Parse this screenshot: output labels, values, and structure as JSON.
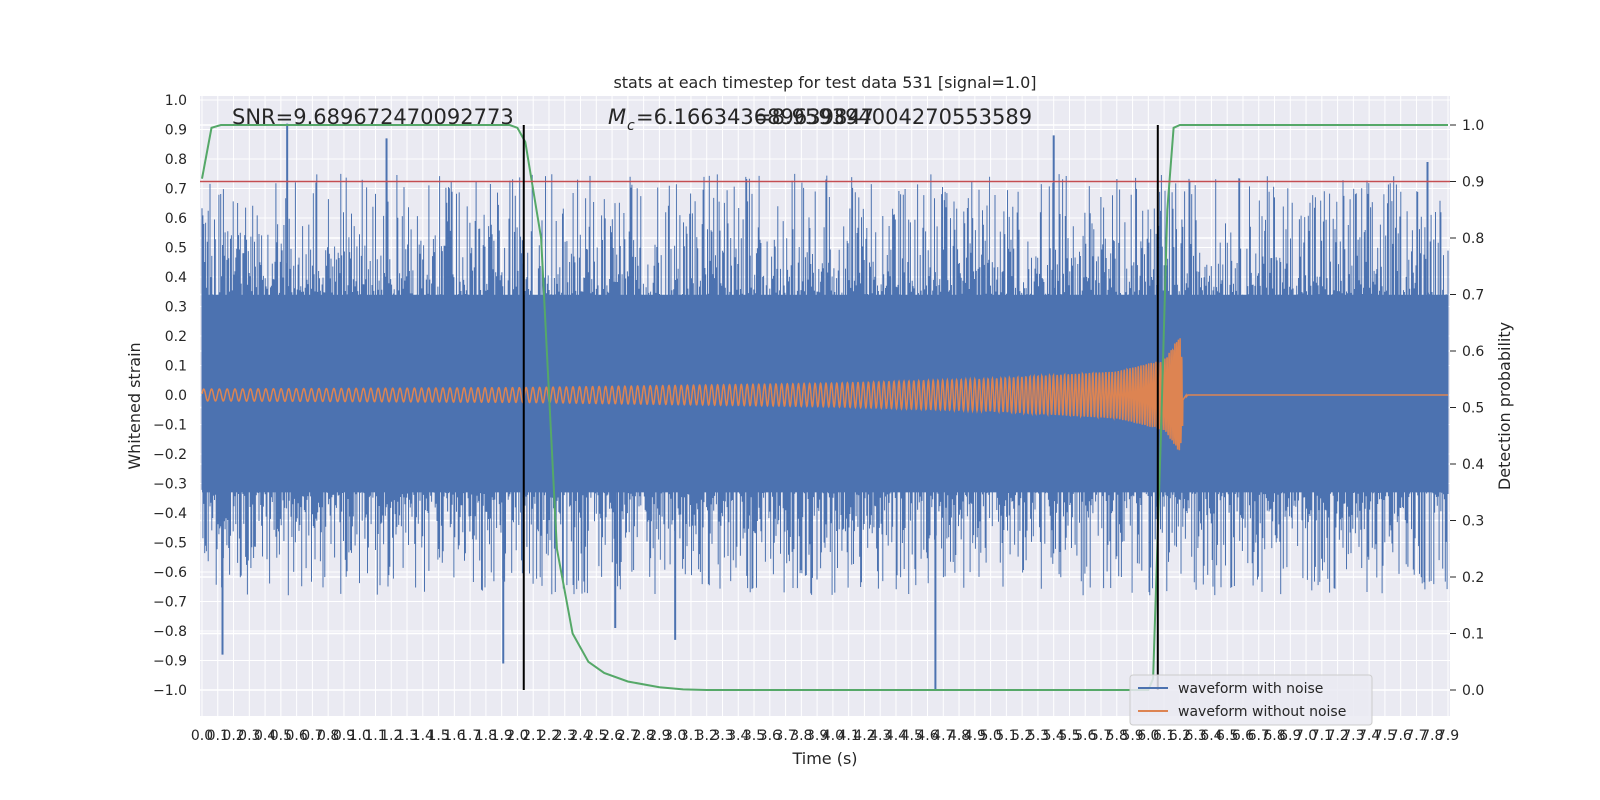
{
  "chart_data": {
    "type": "line",
    "title": "stats at each timestep for test data 531 [signal=1.0]",
    "xlabel": "Time (s)",
    "ylabel": "Whitened strain",
    "y2label": "Detection probability",
    "xlim": [
      0.0,
      7.9
    ],
    "ylim": [
      -1.09,
      1.0
    ],
    "y2lim": [
      -0.045,
      1.045
    ],
    "x_ticks": [
      "0.0",
      "0.1",
      "0.2",
      "0.3",
      "0.4",
      "0.5",
      "0.6",
      "0.7",
      "0.8",
      "0.9",
      "1.0",
      "1.1",
      "1.2",
      "1.3",
      "1.4",
      "1.5",
      "1.6",
      "1.7",
      "1.8",
      "1.9",
      "2.0",
      "2.1",
      "2.2",
      "2.3",
      "2.4",
      "2.5",
      "2.6",
      "2.7",
      "2.8",
      "2.9",
      "3.0",
      "3.1",
      "3.2",
      "3.3",
      "3.4",
      "3.5",
      "3.6",
      "3.7",
      "3.8",
      "3.9",
      "4.0",
      "4.1",
      "4.2",
      "4.3",
      "4.4",
      "4.5",
      "4.6",
      "4.7",
      "4.8",
      "4.9",
      "5.0",
      "5.1",
      "5.2",
      "5.3",
      "5.4",
      "5.5",
      "5.6",
      "5.7",
      "5.8",
      "5.9",
      "6.0",
      "6.1",
      "6.2",
      "6.3",
      "6.4",
      "6.5",
      "6.6",
      "6.7",
      "6.8",
      "6.9",
      "7.0",
      "7.1",
      "7.2",
      "7.3",
      "7.4",
      "7.5",
      "7.6",
      "7.7",
      "7.8",
      "7.9"
    ],
    "y_ticks": [
      "1.0",
      "0.9",
      "0.8",
      "0.7",
      "0.6",
      "0.5",
      "0.4",
      "0.3",
      "0.2",
      "0.1",
      "0.0",
      "−0.1",
      "−0.2",
      "−0.3",
      "−0.4",
      "−0.5",
      "−0.6",
      "−0.7",
      "−0.8",
      "−0.9",
      "−1.0"
    ],
    "y2_ticks": [
      "1.0",
      "0.9",
      "0.8",
      "0.7",
      "0.6",
      "0.5",
      "0.4",
      "0.3",
      "0.2",
      "0.1",
      "0.0"
    ],
    "annotations": {
      "snr": "SNR=9.689672470092773",
      "mc_symbol": "M",
      "mc_subscript": "c",
      "mc_value_a": "=6.166343689639847",
      "mc_value_b": "=8.959394004270553589"
    },
    "series": [
      {
        "name": "waveform with noise",
        "color": "#4c72b0",
        "description": "noisy whitened strain, roughly within ±0.35 with spikes up to 0.92 and down to -1.0",
        "spikes": [
          {
            "x": 0.54,
            "y": 0.92
          },
          {
            "x": 1.17,
            "y": 0.87
          },
          {
            "x": 5.4,
            "y": 0.88
          },
          {
            "x": 0.13,
            "y": -0.88
          },
          {
            "x": 1.91,
            "y": -0.91
          },
          {
            "x": 4.65,
            "y": -1.0
          },
          {
            "x": 7.77,
            "y": 0.79
          },
          {
            "x": 3.0,
            "y": -0.83
          },
          {
            "x": 2.62,
            "y": -0.79
          }
        ]
      },
      {
        "name": "waveform without noise",
        "color": "#dd8452",
        "description": "chirp: amplitude grows from ~0.02 at t=0 to ~0.2 at merger t≈6.2 s, then ~0",
        "envelope": [
          [
            0.0,
            0.02
          ],
          [
            2.0,
            0.025
          ],
          [
            4.0,
            0.04
          ],
          [
            5.0,
            0.055
          ],
          [
            5.8,
            0.08
          ],
          [
            6.1,
            0.12
          ],
          [
            6.2,
            0.2
          ],
          [
            6.25,
            0.0
          ],
          [
            7.9,
            0.0
          ]
        ]
      },
      {
        "name": "detection probability",
        "color": "#55a868",
        "axis": "right",
        "points": [
          [
            0.0,
            0.905
          ],
          [
            0.06,
            0.995
          ],
          [
            0.12,
            1.0
          ],
          [
            1.95,
            1.0
          ],
          [
            2.0,
            0.995
          ],
          [
            2.05,
            0.97
          ],
          [
            2.15,
            0.8
          ],
          [
            2.25,
            0.25
          ],
          [
            2.35,
            0.1
          ],
          [
            2.45,
            0.05
          ],
          [
            2.55,
            0.03
          ],
          [
            2.7,
            0.015
          ],
          [
            2.9,
            0.005
          ],
          [
            3.05,
            0.001
          ],
          [
            3.2,
            0.0
          ],
          [
            6.0,
            0.0
          ],
          [
            6.03,
            0.02
          ],
          [
            6.08,
            0.45
          ],
          [
            6.12,
            0.85
          ],
          [
            6.16,
            0.995
          ],
          [
            6.2,
            1.0
          ],
          [
            7.9,
            1.0
          ]
        ]
      }
    ],
    "threshold": {
      "color": "#c44e52",
      "value": 0.9,
      "axis": "right"
    },
    "vlines": [
      {
        "x": 2.04,
        "color": "#000000"
      },
      {
        "x": 6.06,
        "color": "#000000"
      }
    ],
    "legend": {
      "placement": "lower-right",
      "entries": [
        "waveform with noise",
        "waveform without noise"
      ]
    }
  }
}
